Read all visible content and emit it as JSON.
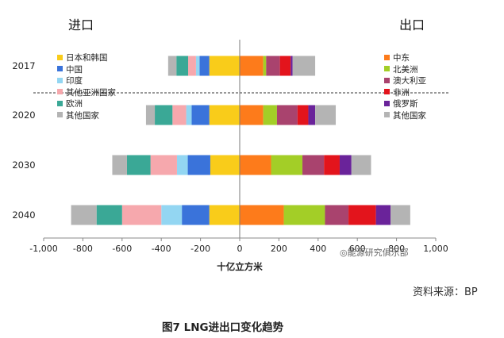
{
  "heading_left": "进口",
  "heading_right": "出口",
  "source": "资料来源：BP",
  "caption": "图7   LNG进出口变化趋势",
  "watermark": "◎能源研究俱乐部",
  "chart_data": {
    "type": "bar",
    "orientation": "horizontal",
    "stacked": true,
    "xlabel": "十亿立方米",
    "ylabel": "",
    "xlim": [
      -1000,
      1000
    ],
    "xticks": [
      -1000,
      -800,
      -600,
      -400,
      -200,
      0,
      200,
      400,
      600,
      800,
      1000
    ],
    "xtick_labels": [
      "-1,000",
      "-800",
      "-600",
      "-400",
      "-200",
      "0",
      "200",
      "400",
      "600",
      "800",
      "1,000"
    ],
    "categories": [
      "2017",
      "2020",
      "2030",
      "2040"
    ],
    "import_series": [
      {
        "name": "日本和韩国",
        "color": "#f9cc1a",
        "values": [
          155,
          155,
          150,
          155
        ]
      },
      {
        "name": "中国",
        "color": "#3a73da",
        "values": [
          50,
          90,
          115,
          140
        ]
      },
      {
        "name": "印度",
        "color": "#93d6f2",
        "values": [
          18,
          28,
          55,
          105
        ]
      },
      {
        "name": "其他亚洲国家",
        "color": "#f6a8ad",
        "values": [
          40,
          70,
          135,
          200
        ]
      },
      {
        "name": "欧洲",
        "color": "#3aa896",
        "values": [
          60,
          90,
          120,
          130
        ]
      },
      {
        "name": "其他国家",
        "color": "#b4b4b4",
        "values": [
          42,
          45,
          75,
          130
        ]
      }
    ],
    "export_series": [
      {
        "name": "中东",
        "color": "#fd7b1b",
        "values": [
          120,
          120,
          160,
          225
        ]
      },
      {
        "name": "北美洲",
        "color": "#a3ce27",
        "values": [
          15,
          70,
          160,
          210
        ]
      },
      {
        "name": "澳大利亚",
        "color": "#a9436e",
        "values": [
          70,
          105,
          110,
          120
        ]
      },
      {
        "name": "非洲",
        "color": "#e3141c",
        "values": [
          55,
          55,
          80,
          140
        ]
      },
      {
        "name": "俄罗斯",
        "color": "#6a239a",
        "values": [
          10,
          35,
          60,
          75
        ]
      },
      {
        "name": "其他国家",
        "color": "#b4b4b4",
        "values": [
          115,
          105,
          100,
          100
        ]
      }
    ]
  }
}
